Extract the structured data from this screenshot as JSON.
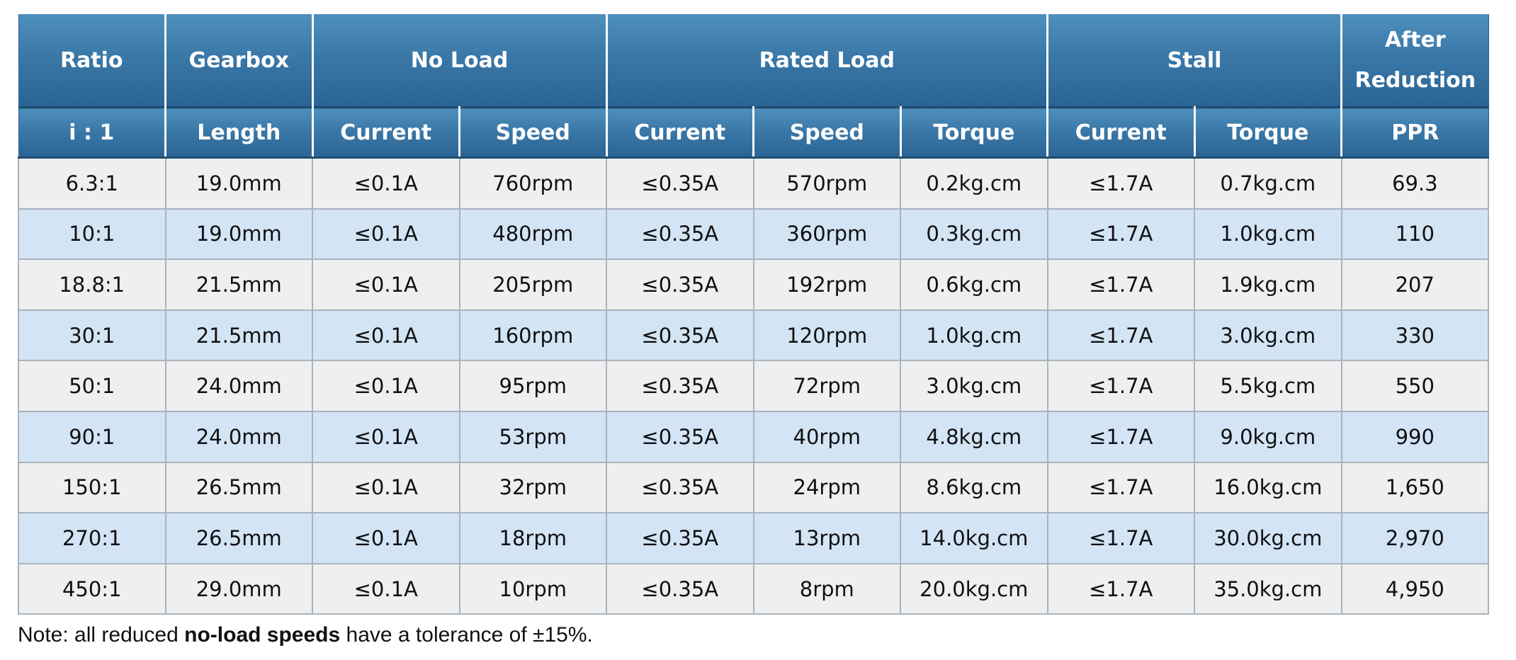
{
  "header": {
    "row1": [
      "Ratio",
      "Gearbox",
      "No Load",
      "Rated Load",
      "Stall",
      "After Reduction"
    ],
    "row2": [
      "i : 1",
      "Length",
      "Current",
      "Speed",
      "Current",
      "Speed",
      "Torque",
      "Current",
      "Torque",
      "PPR"
    ]
  },
  "rows": [
    [
      "6.3:1",
      "19.0mm",
      "≤0.1A",
      "760rpm",
      "≤0.35A",
      "570rpm",
      "0.2kg.cm",
      "≤1.7A",
      "0.7kg.cm",
      "69.3"
    ],
    [
      "10:1",
      "19.0mm",
      "≤0.1A",
      "480rpm",
      "≤0.35A",
      "360rpm",
      "0.3kg.cm",
      "≤1.7A",
      "1.0kg.cm",
      "110"
    ],
    [
      "18.8:1",
      "21.5mm",
      "≤0.1A",
      "205rpm",
      "≤0.35A",
      "192rpm",
      "0.6kg.cm",
      "≤1.7A",
      "1.9kg.cm",
      "207"
    ],
    [
      "30:1",
      "21.5mm",
      "≤0.1A",
      "160rpm",
      "≤0.35A",
      "120rpm",
      "1.0kg.cm",
      "≤1.7A",
      "3.0kg.cm",
      "330"
    ],
    [
      "50:1",
      "24.0mm",
      "≤0.1A",
      "95rpm",
      "≤0.35A",
      "72rpm",
      "3.0kg.cm",
      "≤1.7A",
      "5.5kg.cm",
      "550"
    ],
    [
      "90:1",
      "24.0mm",
      "≤0.1A",
      "53rpm",
      "≤0.35A",
      "40rpm",
      "4.8kg.cm",
      "≤1.7A",
      "9.0kg.cm",
      "990"
    ],
    [
      "150:1",
      "26.5mm",
      "≤0.1A",
      "32rpm",
      "≤0.35A",
      "24rpm",
      "8.6kg.cm",
      "≤1.7A",
      "16.0kg.cm",
      "1,650"
    ],
    [
      "270:1",
      "26.5mm",
      "≤0.1A",
      "18rpm",
      "≤0.35A",
      "13rpm",
      "14.0kg.cm",
      "≤1.7A",
      "30.0kg.cm",
      "2,970"
    ],
    [
      "450:1",
      "29.0mm",
      "≤0.1A",
      "10rpm",
      "≤0.35A",
      "8rpm",
      "20.0kg.cm",
      "≤1.7A",
      "35.0kg.cm",
      "4,950"
    ]
  ],
  "note": {
    "prefix": "Note: all reduced ",
    "bold": "no-load speeds",
    "suffix": " have a tolerance of ±15%."
  },
  "colors": {
    "header_top": "#4f8fbd",
    "header_bottom": "#2a6494",
    "row_odd": "#efefef",
    "row_even": "#d3e4f5",
    "grid": "#a9b3bc"
  }
}
